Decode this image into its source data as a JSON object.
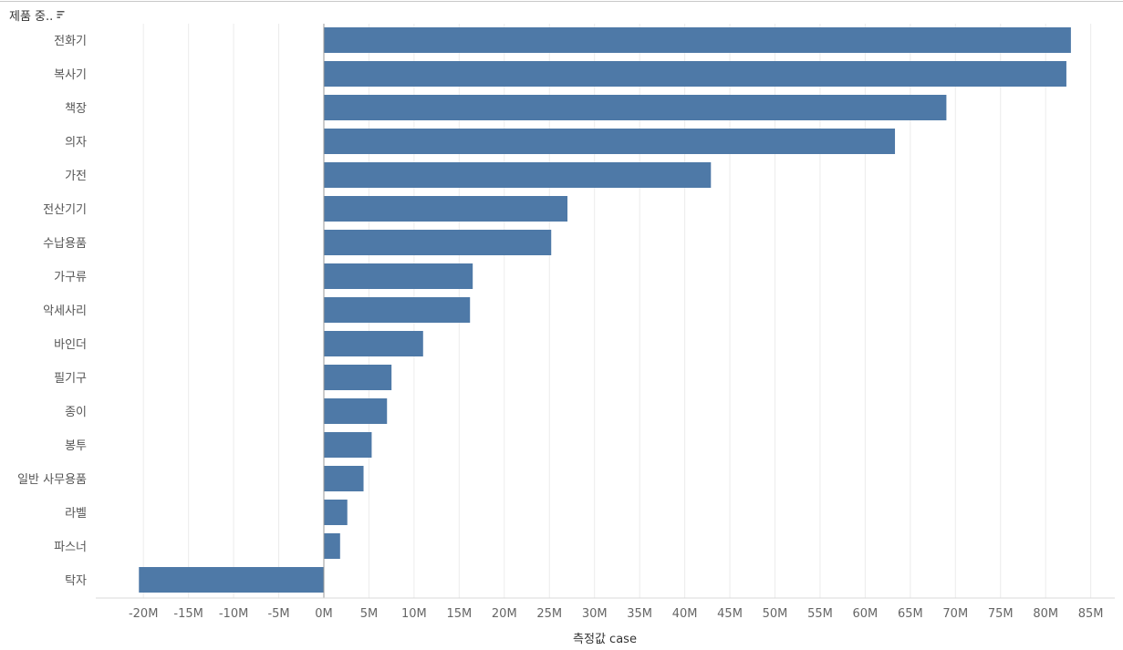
{
  "header": {
    "field_label": "제품 중..",
    "sort_icon": "sort-descending-icon"
  },
  "colors": {
    "bar": "#4e79a7",
    "gridline": "#ececec",
    "zeroline": "#9a9a9a"
  },
  "chart_data": {
    "type": "bar",
    "orientation": "horizontal",
    "categories": [
      "전화기",
      "복사기",
      "책장",
      "의자",
      "가전",
      "전산기기",
      "수납용품",
      "가구류",
      "악세사리",
      "바인더",
      "필기구",
      "종이",
      "봉투",
      "일반 사무용품",
      "라벨",
      "파스너",
      "탁자"
    ],
    "values": [
      82.8,
      82.3,
      69.0,
      63.3,
      42.9,
      27.0,
      25.2,
      16.5,
      16.2,
      11.0,
      7.5,
      7.0,
      5.3,
      4.4,
      2.6,
      1.8,
      -20.5
    ],
    "value_unit": "M",
    "xlim": [
      -22.5,
      87.5
    ],
    "xticks": [
      -20,
      -15,
      -10,
      -5,
      0,
      5,
      10,
      15,
      20,
      25,
      30,
      35,
      40,
      45,
      50,
      55,
      60,
      65,
      70,
      75,
      80,
      85
    ],
    "xtick_labels": [
      "-20M",
      "-15M",
      "-10M",
      "-5M",
      "0M",
      "5M",
      "10M",
      "15M",
      "20M",
      "25M",
      "30M",
      "35M",
      "40M",
      "45M",
      "50M",
      "55M",
      "60M",
      "65M",
      "70M",
      "75M",
      "80M",
      "85M"
    ],
    "xlabel": "측정값 case",
    "ylabel": "",
    "grid": true,
    "legend": "none",
    "sorted": "descending"
  }
}
